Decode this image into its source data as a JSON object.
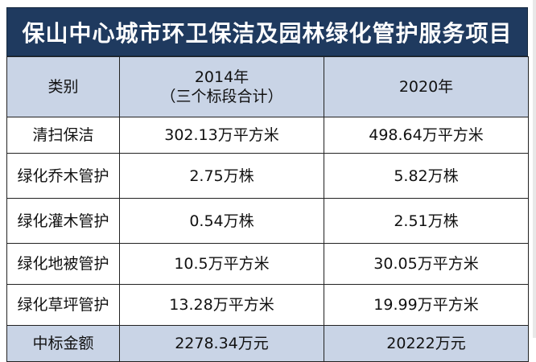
{
  "title": "保山中心城市环卫保洁及园林绿化管护服务项目",
  "header": {
    "col1": "类别",
    "col2_line1": "2014年",
    "col2_line2": "（三个标段合计）",
    "col3": "2020年"
  },
  "rows": [
    {
      "category": "清扫保洁",
      "y2014": "302.13万平方米",
      "y2020": "498.64万平方米"
    },
    {
      "category": "绿化乔木管护",
      "y2014": "2.75万株",
      "y2020": "5.82万株"
    },
    {
      "category": "绿化灌木管护",
      "y2014": "0.54万株",
      "y2020": "2.51万株"
    },
    {
      "category": "绿化地被管护",
      "y2014": "10.5万平方米",
      "y2020": "30.05万平方米"
    },
    {
      "category": "绿化草坪管护",
      "y2014": "13.28万平方米",
      "y2020": "19.99万平方米"
    }
  ],
  "footer": {
    "category": "中标金额",
    "y2014": "2278.34万元",
    "y2020": "20222万元"
  },
  "colors": {
    "title_bg": "#1f3a5f",
    "header_bg": "#c9d4e6"
  }
}
